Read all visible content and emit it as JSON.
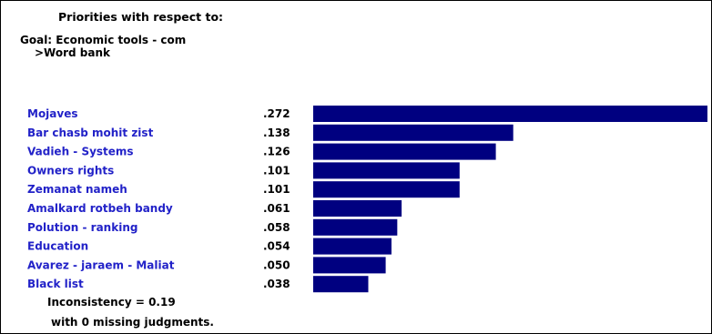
{
  "header": {
    "title": "Priorities with respect to:",
    "goal": "Goal: Economic tools - com",
    "node": ">Word bank"
  },
  "chart_data": {
    "type": "bar",
    "orientation": "horizontal",
    "categories": [
      "Mojaves",
      "Bar chasb mohit zist",
      "Vadieh - Systems",
      "Owners rights",
      "Zemanat nameh",
      "Amalkard rotbeh bandy",
      "Polution - ranking",
      "Education",
      "Avarez - jaraem - Maliat",
      "Black list"
    ],
    "values": [
      0.272,
      0.138,
      0.126,
      0.101,
      0.101,
      0.061,
      0.058,
      0.054,
      0.05,
      0.038
    ],
    "value_labels": [
      ".272",
      ".138",
      ".126",
      ".101",
      ".101",
      ".061",
      ".058",
      ".054",
      ".050",
      ".038"
    ],
    "bar_color": "#000080",
    "label_color": "#2222c8"
  },
  "footer": {
    "inconsistency": "Inconsistency = 0.19",
    "missing": "with 0  missing judgments."
  }
}
